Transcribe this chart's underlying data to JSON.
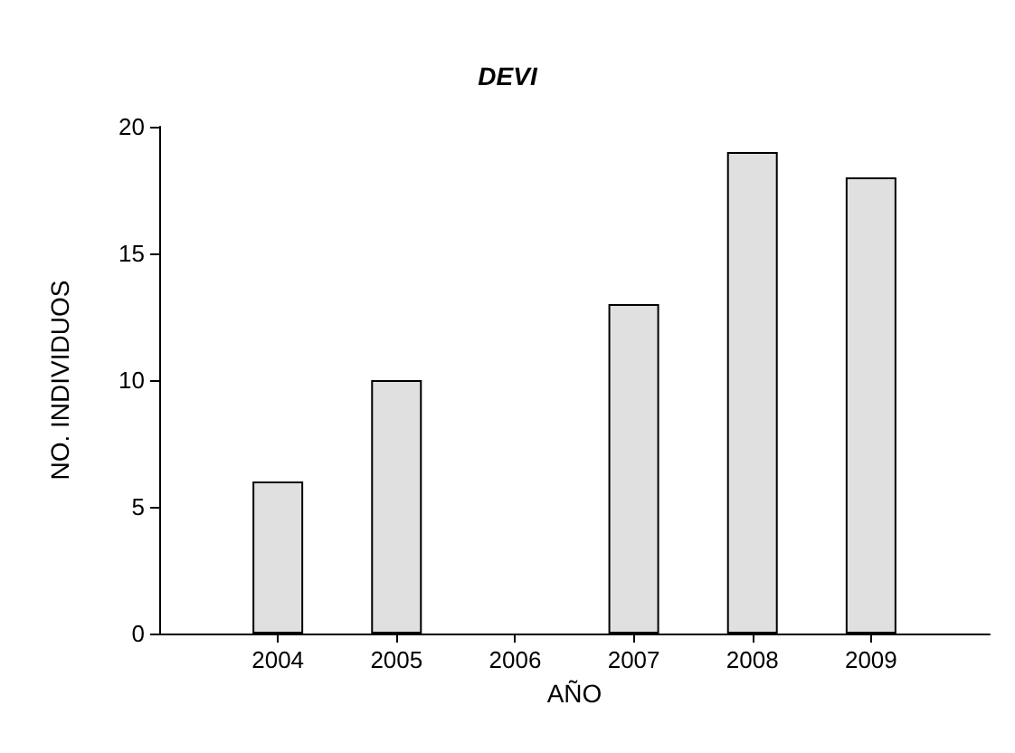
{
  "chart_data": {
    "type": "bar",
    "title": "DEVI",
    "xlabel": "AÑO",
    "ylabel": "NO. INDIVIDUOS",
    "x": [
      2004,
      2005,
      2006,
      2007,
      2008,
      2009
    ],
    "values": [
      6,
      10,
      null,
      13,
      19,
      18
    ],
    "color": "#e0e0e0",
    "xlim": [
      2003,
      2010
    ],
    "xticks": [
      2004,
      2005,
      2006,
      2007,
      2008,
      2009
    ],
    "ylim": [
      0,
      20
    ],
    "yticks": [
      0,
      5,
      10,
      15,
      20
    ],
    "grid": false
  }
}
